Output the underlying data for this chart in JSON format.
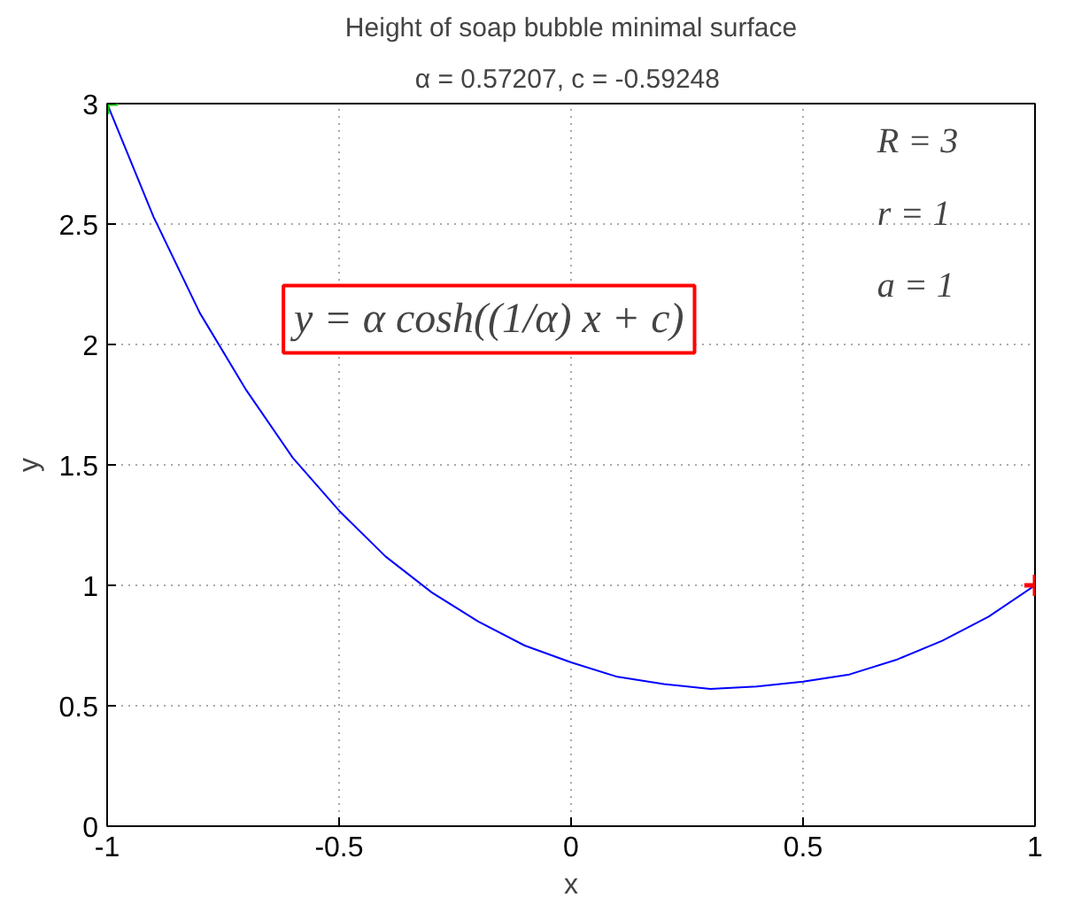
{
  "chart_data": {
    "type": "line",
    "title": "Height of soap bubble minimal surface",
    "subtitle": "α = 0.57207,  c = -0.59248",
    "xlabel": "x",
    "ylabel": "y",
    "xlim": [
      -1,
      1
    ],
    "ylim": [
      0,
      3
    ],
    "xticks": [
      -1,
      -0.5,
      0,
      0.5,
      1
    ],
    "yticks": [
      0,
      0.5,
      1,
      1.5,
      2,
      2.5,
      3
    ],
    "grid": true,
    "annotations": [
      "y = α cosh((1/α) x + c)",
      "R = 3",
      "r = 1",
      "a = 1"
    ],
    "series": [
      {
        "color": "#0000ff",
        "x": [
          -1,
          -0.9,
          -0.8,
          -0.7,
          -0.6,
          -0.5,
          -0.4,
          -0.3,
          -0.2,
          -0.1,
          0,
          0.1,
          0.2,
          0.3,
          0.4,
          0.5,
          0.6,
          0.7,
          0.8,
          0.9,
          1
        ],
        "values": [
          3.0,
          2.53,
          2.13,
          1.81,
          1.53,
          1.31,
          1.12,
          0.97,
          0.85,
          0.75,
          0.68,
          0.62,
          0.59,
          0.57,
          0.58,
          0.6,
          0.63,
          0.69,
          0.77,
          0.87,
          1.0
        ]
      },
      {
        "type": "scatter",
        "marker": "cross",
        "color": "#00cc00",
        "x": [
          -1
        ],
        "values": [
          3.0
        ]
      },
      {
        "type": "scatter",
        "marker": "cross",
        "color": "#ff0000",
        "x": [
          1
        ],
        "values": [
          1.0
        ]
      }
    ]
  }
}
